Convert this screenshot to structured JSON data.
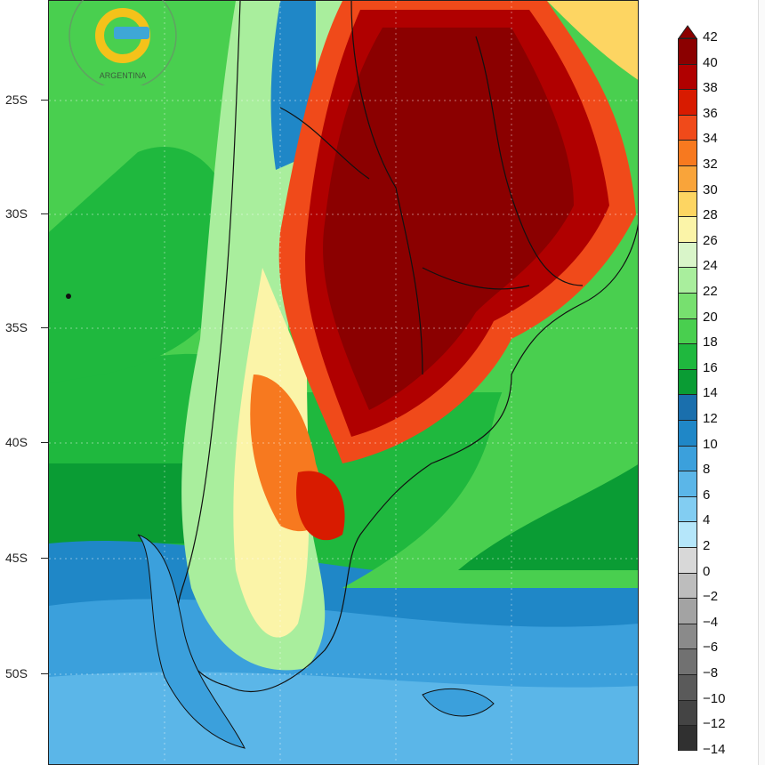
{
  "logo": {
    "text": "ARGENTINA"
  },
  "map": {
    "lat_labels": [
      "25S",
      "30S",
      "35S",
      "40S",
      "45S",
      "50S"
    ],
    "region": "Argentina / Southern South America"
  },
  "colorbar": {
    "labels": [
      "42",
      "40",
      "38",
      "36",
      "34",
      "32",
      "30",
      "28",
      "26",
      "24",
      "22",
      "20",
      "18",
      "16",
      "14",
      "12",
      "10",
      "8",
      "6",
      "4",
      "2",
      "0",
      "-2",
      "-4",
      "-6",
      "-8",
      "-10",
      "-12",
      "-14"
    ],
    "colors": [
      "#8b0000",
      "#b00000",
      "#d81b00",
      "#f04a1a",
      "#f7791f",
      "#f9a43a",
      "#fdd562",
      "#fbf4a8",
      "#d9f5c9",
      "#a9ee9d",
      "#77e06f",
      "#49cf4f",
      "#1fb83e",
      "#0a9c34",
      "#1a6fad",
      "#1f87c7",
      "#3ba0dc",
      "#5bb6e8",
      "#82cdf2",
      "#b5e6fa",
      "#d8d8d8",
      "#bdbdbd",
      "#a3a3a3",
      "#8a8a8a",
      "#717171",
      "#5a5a5a",
      "#444444",
      "#303030"
    ]
  }
}
